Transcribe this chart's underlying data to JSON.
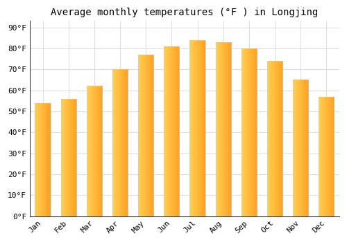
{
  "title": "Average monthly temperatures (°F ) in Longjing",
  "months": [
    "Jan",
    "Feb",
    "Mar",
    "Apr",
    "May",
    "Jun",
    "Jul",
    "Aug",
    "Sep",
    "Oct",
    "Nov",
    "Dec"
  ],
  "values": [
    54,
    56,
    62,
    70,
    77,
    81,
    84,
    83,
    80,
    74,
    65,
    57
  ],
  "bar_color_left": "#FFD055",
  "bar_color_right": "#FFA020",
  "bar_edge_color": "#cccccc",
  "yticks": [
    0,
    10,
    20,
    30,
    40,
    50,
    60,
    70,
    80,
    90
  ],
  "ylim": [
    0,
    93
  ],
  "background_color": "#ffffff",
  "plot_bg_color": "#ffffff",
  "grid_color": "#dddddd",
  "title_fontsize": 10,
  "tick_fontsize": 8,
  "font_family": "monospace",
  "bar_width": 0.6
}
